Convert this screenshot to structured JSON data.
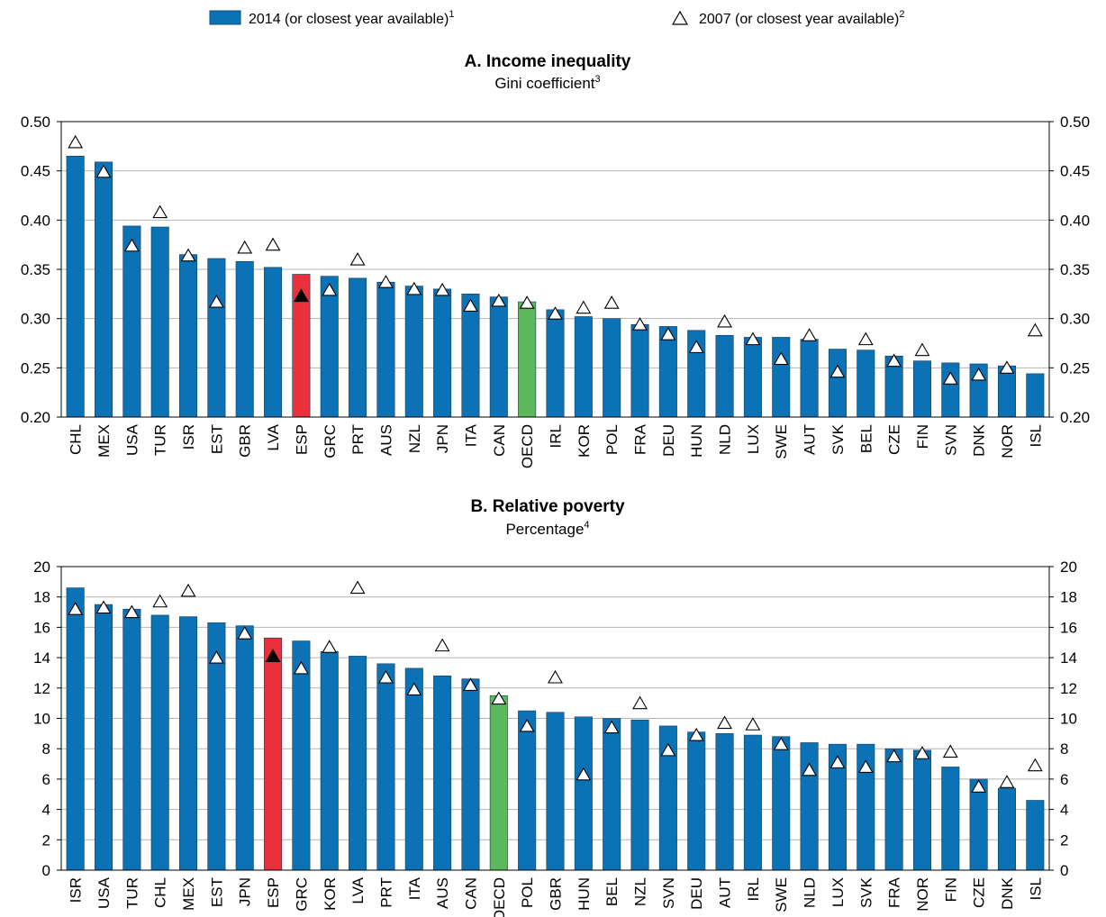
{
  "legend": {
    "bar_label": "2014 (or closest year available)",
    "bar_note": "1",
    "marker_label": "2007 (or closest year available)",
    "marker_note": "2"
  },
  "colors": {
    "bar": "#0b72b5",
    "highlight_spain": "#e8313b",
    "highlight_oecd": "#5cb85c",
    "marker_fill": "#ffffff",
    "marker_fill_highlight": "#000000"
  },
  "chart_data": [
    {
      "type": "bar",
      "title": "A. Income inequality",
      "subtitle": "Gini coefficient",
      "subtitle_note": "3",
      "ylim": [
        0.2,
        0.5
      ],
      "yticks": [
        "0.20",
        "0.25",
        "0.30",
        "0.35",
        "0.40",
        "0.45",
        "0.50"
      ],
      "ytick_values": [
        0.2,
        0.25,
        0.3,
        0.35,
        0.4,
        0.45,
        0.5
      ],
      "categories": [
        "CHL",
        "MEX",
        "USA",
        "TUR",
        "ISR",
        "EST",
        "GBR",
        "LVA",
        "ESP",
        "GRC",
        "PRT",
        "AUS",
        "NZL",
        "JPN",
        "ITA",
        "CAN",
        "OECD",
        "IRL",
        "KOR",
        "POL",
        "FRA",
        "DEU",
        "HUN",
        "NLD",
        "LUX",
        "SWE",
        "AUT",
        "SVK",
        "BEL",
        "CZE",
        "FIN",
        "SVN",
        "DNK",
        "NOR",
        "ISL"
      ],
      "series": [
        {
          "name": "2014 (or closest year available)",
          "marker": "bar",
          "values": [
            0.465,
            0.459,
            0.394,
            0.393,
            0.365,
            0.361,
            0.358,
            0.352,
            0.345,
            0.343,
            0.341,
            0.337,
            0.333,
            0.33,
            0.325,
            0.322,
            0.317,
            0.309,
            0.302,
            0.3,
            0.294,
            0.292,
            0.288,
            0.283,
            0.281,
            0.281,
            0.279,
            0.269,
            0.268,
            0.262,
            0.257,
            0.255,
            0.254,
            0.252,
            0.244
          ]
        },
        {
          "name": "2007 (or closest year available)",
          "marker": "triangle",
          "values": [
            0.479,
            0.449,
            0.374,
            0.408,
            0.364,
            0.317,
            0.372,
            0.375,
            0.323,
            0.329,
            0.36,
            0.337,
            0.33,
            0.329,
            0.313,
            0.318,
            0.316,
            0.305,
            0.311,
            0.316,
            0.294,
            0.284,
            0.271,
            0.297,
            0.279,
            0.259,
            0.283,
            0.246,
            0.279,
            0.257,
            0.268,
            0.239,
            0.243,
            0.25,
            0.288
          ]
        }
      ],
      "highlight": {
        "ESP": "highlight_spain",
        "OECD": "highlight_oecd"
      }
    },
    {
      "type": "bar",
      "title": "B. Relative poverty",
      "subtitle": "Percentage",
      "subtitle_note": "4",
      "ylim": [
        0,
        20
      ],
      "yticks": [
        "0",
        "2",
        "4",
        "6",
        "8",
        "10",
        "12",
        "14",
        "16",
        "18",
        "20"
      ],
      "ytick_values": [
        0,
        2,
        4,
        6,
        8,
        10,
        12,
        14,
        16,
        18,
        20
      ],
      "categories": [
        "ISR",
        "USA",
        "TUR",
        "CHL",
        "MEX",
        "EST",
        "JPN",
        "ESP",
        "GRC",
        "KOR",
        "LVA",
        "PRT",
        "ITA",
        "AUS",
        "CAN",
        "OECD",
        "POL",
        "GBR",
        "HUN",
        "BEL",
        "NZL",
        "SVN",
        "DEU",
        "AUT",
        "IRL",
        "SWE",
        "NLD",
        "LUX",
        "SVK",
        "FRA",
        "NOR",
        "FIN",
        "CZE",
        "DNK",
        "ISL"
      ],
      "series": [
        {
          "name": "2014 (or closest year available)",
          "marker": "bar",
          "values": [
            18.6,
            17.5,
            17.2,
            16.8,
            16.7,
            16.3,
            16.1,
            15.3,
            15.1,
            14.4,
            14.1,
            13.6,
            13.3,
            12.8,
            12.6,
            11.5,
            10.5,
            10.4,
            10.1,
            10.0,
            9.9,
            9.5,
            9.1,
            9.0,
            8.9,
            8.8,
            8.4,
            8.3,
            8.3,
            8.0,
            7.9,
            6.8,
            6.0,
            5.4,
            4.6
          ]
        },
        {
          "name": "2007 (or closest year available)",
          "marker": "triangle",
          "values": [
            17.2,
            17.3,
            17.0,
            17.7,
            18.4,
            14.0,
            15.6,
            14.1,
            13.3,
            14.7,
            18.6,
            12.7,
            11.9,
            14.8,
            12.2,
            11.3,
            9.5,
            12.7,
            6.3,
            9.4,
            11.0,
            7.9,
            8.9,
            9.7,
            9.6,
            8.3,
            6.6,
            7.1,
            6.8,
            7.5,
            7.7,
            7.8,
            5.5,
            5.8,
            6.9
          ]
        }
      ],
      "highlight": {
        "ESP": "highlight_spain",
        "OECD": "highlight_oecd"
      }
    }
  ]
}
